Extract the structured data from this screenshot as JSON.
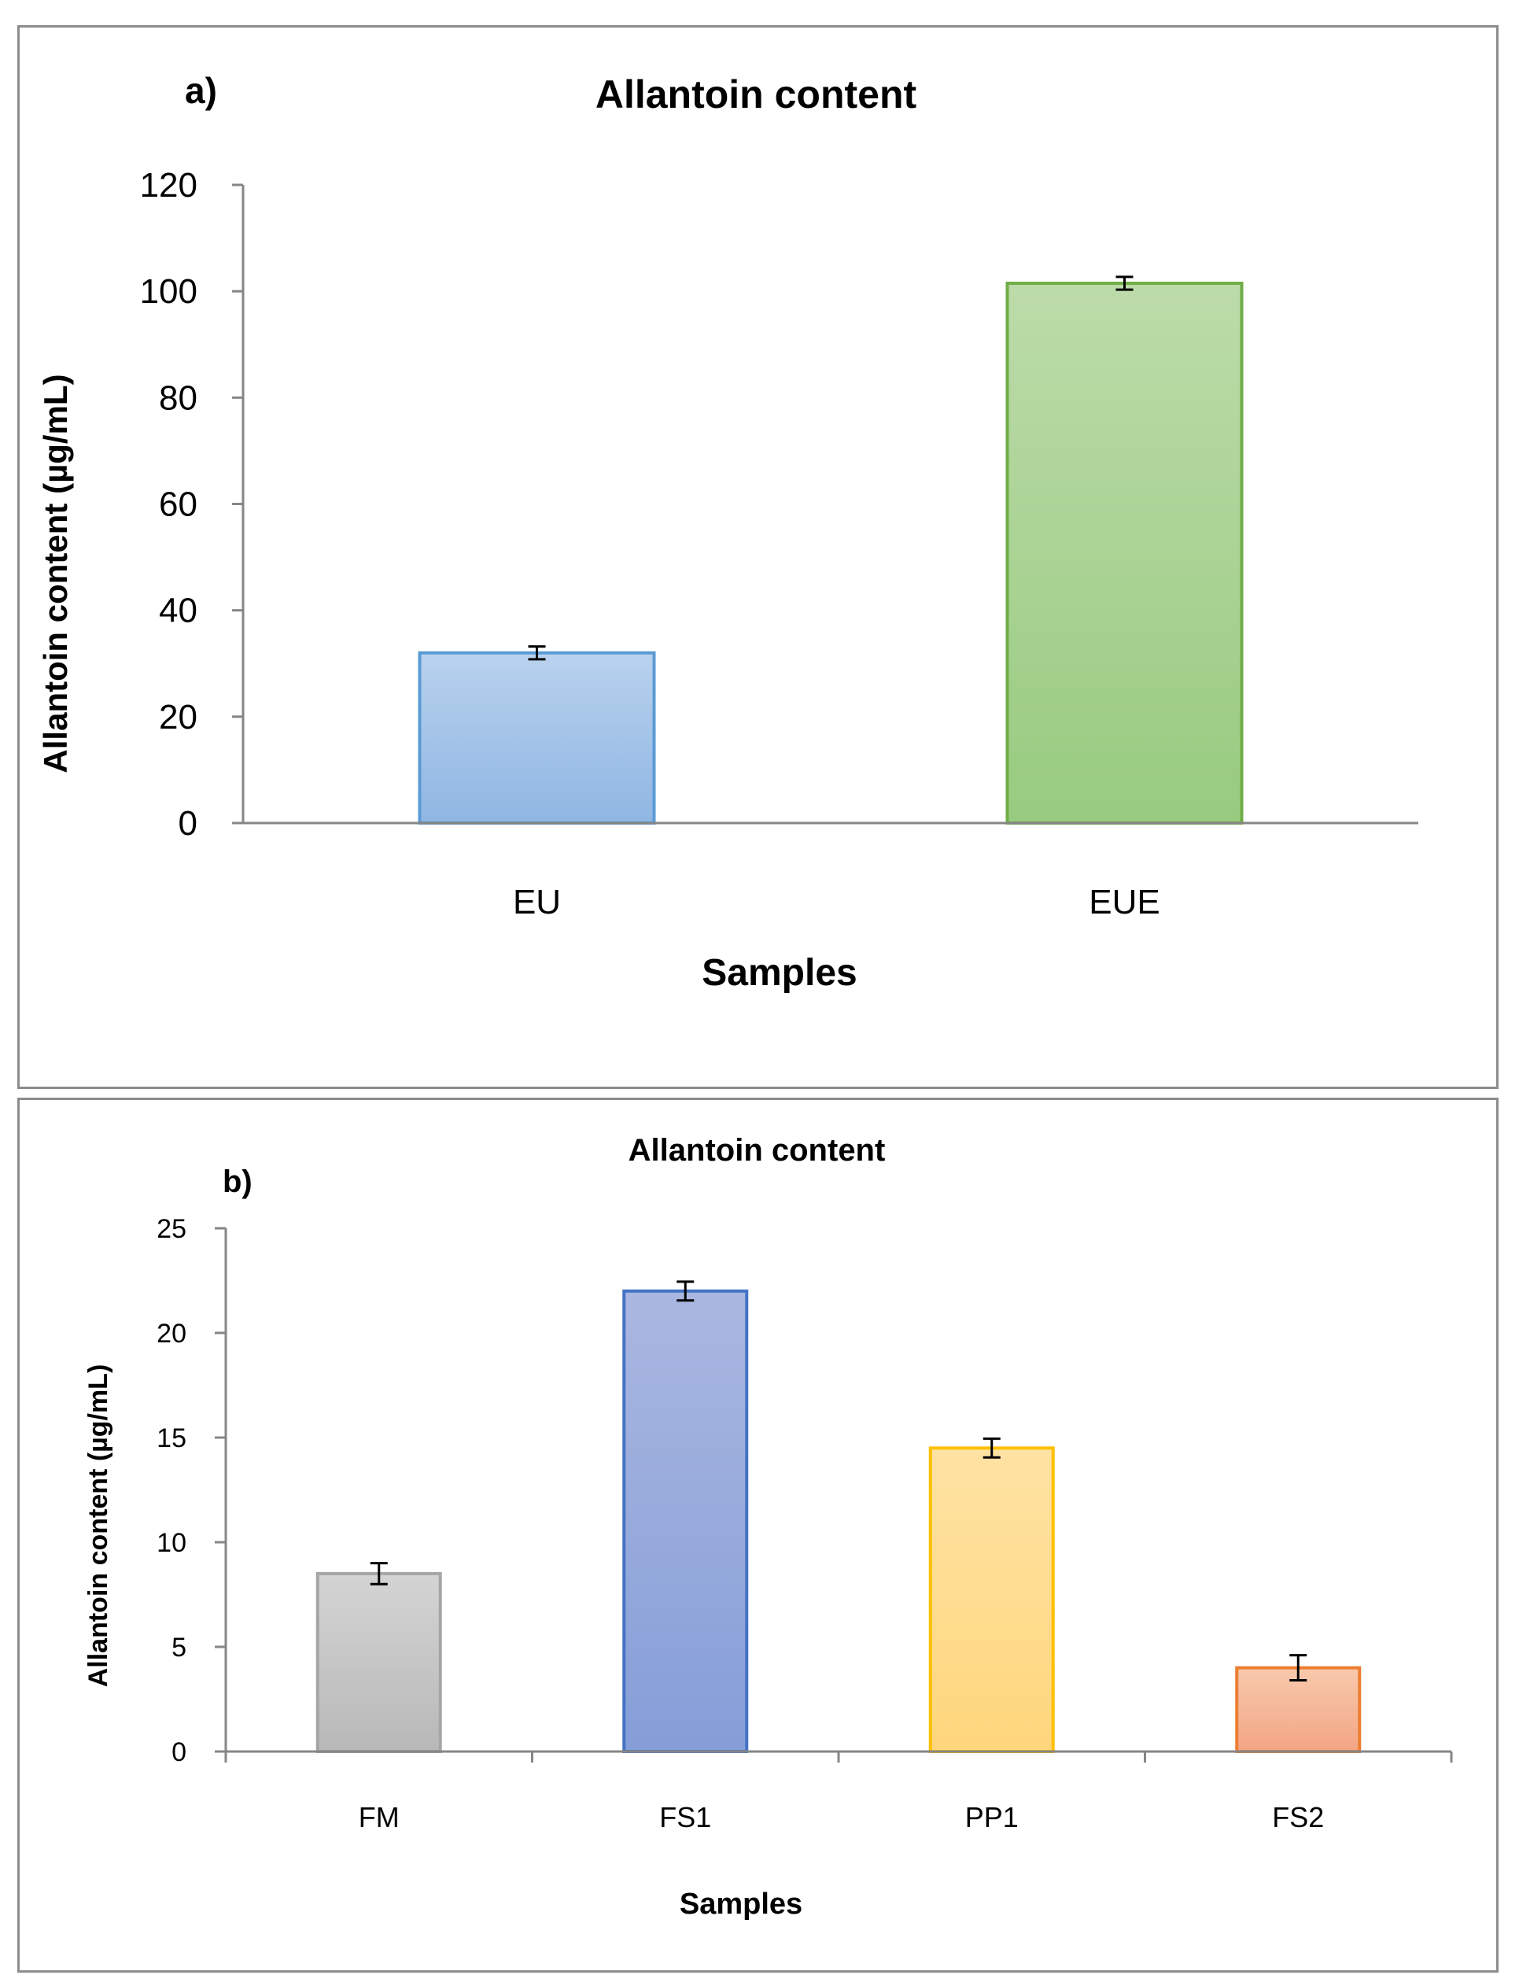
{
  "chart_data": [
    {
      "type": "bar",
      "panel_label": "a)",
      "title": "Allantoin content",
      "xlabel": "Samples",
      "ylabel": "Allantoin content  (µg/mL)",
      "categories": [
        "EU",
        "EUE"
      ],
      "values": [
        32,
        101.5
      ],
      "errors": [
        1.2,
        1.2
      ],
      "ylim": [
        0,
        120
      ],
      "yticks": [
        0,
        20,
        40,
        60,
        80,
        100,
        120
      ],
      "bar_colors": [
        {
          "fill_top": "#b9d2ee",
          "fill_bottom": "#8fb6e3",
          "stroke": "#5b9bd5"
        },
        {
          "fill_top": "#bcdba9",
          "fill_bottom": "#98cb80",
          "stroke": "#70ad47"
        }
      ],
      "grid": false
    },
    {
      "type": "bar",
      "panel_label": "b)",
      "title": "Allantoin content",
      "xlabel": "Samples",
      "ylabel": "Allantoin content  (µg/mL)",
      "categories": [
        "FM",
        "FS1",
        "PP1",
        "FS2"
      ],
      "values": [
        8.5,
        22.0,
        14.5,
        4.0
      ],
      "errors": [
        0.5,
        0.45,
        0.45,
        0.6
      ],
      "ylim": [
        0,
        25
      ],
      "yticks": [
        0,
        5,
        10,
        15,
        20,
        25
      ],
      "bar_colors": [
        {
          "fill_top": "#d4d4d4",
          "fill_bottom": "#b8b8b8",
          "stroke": "#a5a5a5"
        },
        {
          "fill_top": "#aab7e0",
          "fill_bottom": "#859ed8",
          "stroke": "#4472c4"
        },
        {
          "fill_top": "#ffe3a4",
          "fill_bottom": "#ffd67c",
          "stroke": "#ffc000"
        },
        {
          "fill_top": "#f8c9ad",
          "fill_bottom": "#f3a584",
          "stroke": "#ed7d31"
        }
      ],
      "grid": false
    }
  ]
}
